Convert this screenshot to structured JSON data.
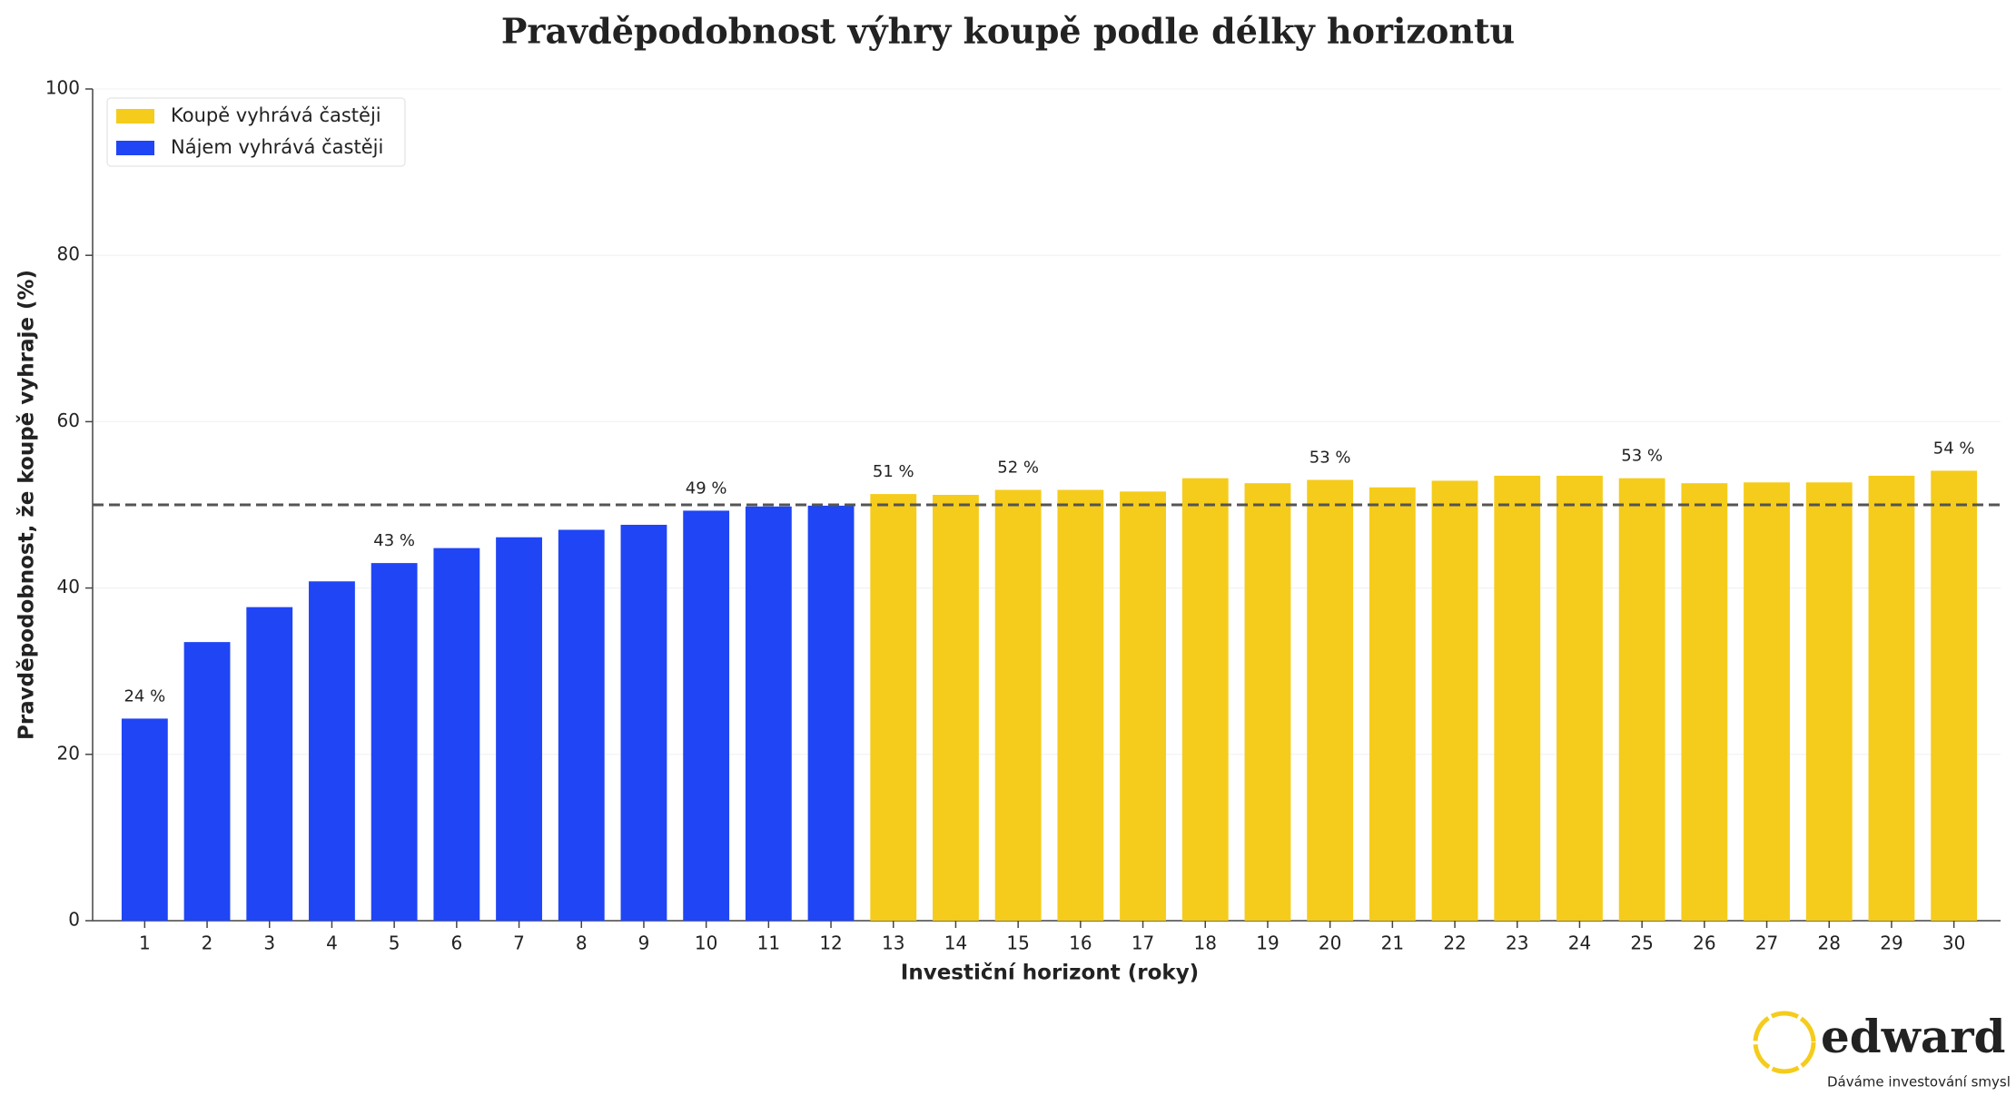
{
  "chart_data": {
    "type": "bar",
    "title": "Pravděpodobnost výhry koupě podle délky horizontu",
    "x_label": "Investiční horizont (roky)",
    "y_label": "Pravděpodobnost, že koupě vyhraje (%)",
    "categories": [
      "1",
      "2",
      "3",
      "4",
      "5",
      "6",
      "7",
      "8",
      "9",
      "10",
      "11",
      "12",
      "13",
      "14",
      "15",
      "16",
      "17",
      "18",
      "19",
      "20",
      "21",
      "22",
      "23",
      "24",
      "25",
      "26",
      "27",
      "28",
      "29",
      "30"
    ],
    "series": [
      {
        "name": "Koupě vyhrává častěji",
        "color": "#f5cc1b",
        "values": [
          null,
          null,
          null,
          null,
          null,
          null,
          null,
          null,
          null,
          null,
          null,
          null,
          51.3,
          51.2,
          51.8,
          51.8,
          51.6,
          53.2,
          52.6,
          53.0,
          52.1,
          52.9,
          53.5,
          53.5,
          53.2,
          52.6,
          52.7,
          52.7,
          53.5,
          54.1
        ],
        "value_labels": [
          null,
          null,
          null,
          null,
          null,
          null,
          null,
          null,
          null,
          null,
          null,
          null,
          "51 %",
          null,
          "52 %",
          null,
          null,
          null,
          null,
          "53 %",
          null,
          null,
          null,
          null,
          "53 %",
          null,
          null,
          null,
          null,
          "54 %"
        ]
      },
      {
        "name": "Nájem vyhrává častěji",
        "color": "#1f45f5",
        "values": [
          24.3,
          33.5,
          37.7,
          40.8,
          43.0,
          44.8,
          46.1,
          47.0,
          47.6,
          49.3,
          49.8,
          49.9,
          null,
          null,
          null,
          null,
          null,
          null,
          null,
          null,
          null,
          null,
          null,
          null,
          null,
          null,
          null,
          null,
          null,
          null
        ],
        "value_labels": [
          "24 %",
          null,
          null,
          null,
          "43 %",
          null,
          null,
          null,
          null,
          "49 %",
          null,
          null,
          null,
          null,
          null,
          null,
          null,
          null,
          null,
          null,
          null,
          null,
          null,
          null,
          null,
          null,
          null,
          null,
          null,
          null
        ]
      }
    ],
    "ylim": [
      0,
      100
    ],
    "yticks": [
      0,
      20,
      40,
      60,
      80,
      100
    ],
    "grid": true,
    "hline": 50,
    "legend": "upper left"
  },
  "logo": {
    "name": "edward",
    "tagline": "Dáváme investování smysl"
  }
}
